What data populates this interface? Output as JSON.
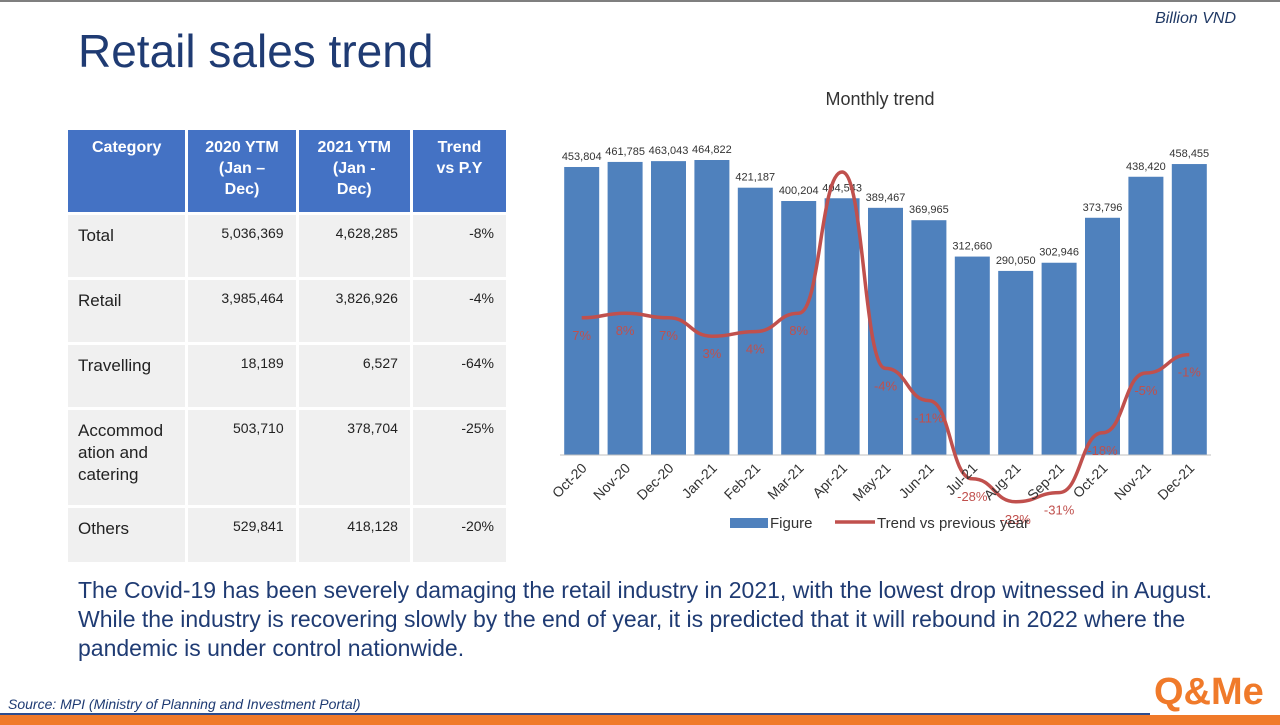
{
  "unit_label": "Billion VND",
  "title": "Retail sales trend",
  "table": {
    "headers": [
      "Category",
      "2020 YTM (Jan – Dec)",
      "2021 YTM (Jan - Dec)",
      "Trend vs P.Y"
    ],
    "header_lines": [
      [
        "Category"
      ],
      [
        "2020 YTM",
        "(Jan –",
        "Dec)"
      ],
      [
        "2021 YTM",
        "(Jan -",
        "Dec)"
      ],
      [
        "Trend",
        "vs P.Y"
      ]
    ],
    "rows": [
      {
        "category": "Total",
        "y2020": "5,036,369",
        "y2021": "4,628,285",
        "trend": "-8%"
      },
      {
        "category": "Retail",
        "y2020": "3,985,464",
        "y2021": "3,826,926",
        "trend": "-4%"
      },
      {
        "category": "Travelling",
        "y2020": "18,189",
        "y2021": "6,527",
        "trend": "-64%"
      },
      {
        "category": "Accommodation and catering",
        "category_lines": [
          "Accommod",
          "ation and",
          "catering"
        ],
        "y2020": "503,710",
        "y2021": "378,704",
        "trend": "-25%"
      },
      {
        "category": "Others",
        "y2020": "529,841",
        "y2021": "418,128",
        "trend": "-20%"
      }
    ]
  },
  "chart_data": {
    "type": "bar",
    "title": "Monthly trend",
    "categories": [
      "Oct-20",
      "Nov-20",
      "Dec-20",
      "Jan-21",
      "Feb-21",
      "Mar-21",
      "Apr-21",
      "May-21",
      "Jun-21",
      "Jul-21",
      "Aug-21",
      "Sep-21",
      "Oct-21",
      "Nov-21",
      "Dec-21"
    ],
    "series": [
      {
        "name": "Figure",
        "type": "bar",
        "color": "#4f81bd",
        "values": [
          453804,
          461785,
          463043,
          464822,
          421187,
          400204,
          404543,
          389467,
          369965,
          312660,
          290050,
          302946,
          373796,
          438420,
          458455
        ],
        "labels": [
          "453,804",
          "461,785",
          "463,043",
          "464,822",
          "421,187",
          "400,204",
          "404,543",
          "389,467",
          "369,965",
          "312,660",
          "290,050",
          "302,946",
          "373,796",
          "438,420",
          "458,455"
        ]
      },
      {
        "name": "Trend vs previous year",
        "type": "line",
        "color": "#c0504d",
        "values": [
          7,
          8,
          7,
          3,
          4,
          8,
          null,
          -4,
          -11,
          -28,
          -33,
          -31,
          -18,
          -5,
          -1
        ],
        "labels": [
          "7%",
          "8%",
          "7%",
          "3%",
          "4%",
          "8%",
          "",
          "-4%",
          "-11%",
          "-28%",
          "-33%",
          "-31%",
          "-18%",
          "-5%",
          "-1%"
        ]
      }
    ],
    "legend": "bottom"
  },
  "summary": "The Covid-19 has been severely damaging the retail industry in 2021, with the lowest drop witnessed in August. While the industry is recovering slowly by the end of year, it is predicted that it will rebound in 2022 where the pandemic is under control nationwide.",
  "source": "Source: MPI (Ministry of Planning and Investment Portal)",
  "logo_text": "Q&Me",
  "colors": {
    "title": "#1f3b73",
    "header": "#4472c4",
    "bar": "#4f81bd",
    "line": "#c0504d",
    "accent": "#f07a2a"
  }
}
